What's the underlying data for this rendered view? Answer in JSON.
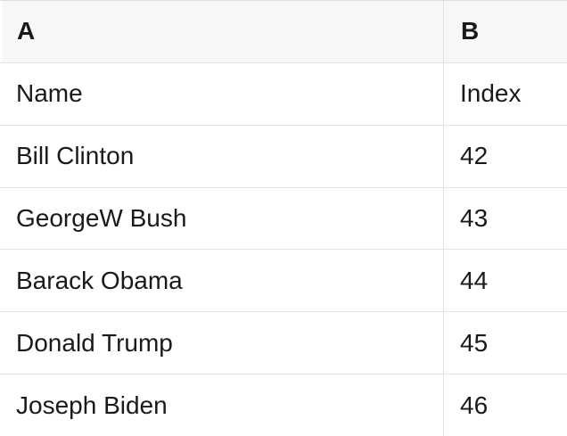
{
  "table": {
    "columns": [
      {
        "header": "A"
      },
      {
        "header": "B"
      }
    ],
    "rows": [
      [
        "Name",
        "Index"
      ],
      [
        "Bill Clinton",
        "42"
      ],
      [
        "GeorgeW Bush",
        "43"
      ],
      [
        "Barack Obama",
        "44"
      ],
      [
        "Donald Trump",
        "45"
      ],
      [
        "Joseph Biden",
        "46"
      ]
    ],
    "colors": {
      "header_bg": "#f7f7f7",
      "row_bg": "#ffffff",
      "border": "#e0e0e0",
      "text": "#1a1a1a"
    }
  }
}
